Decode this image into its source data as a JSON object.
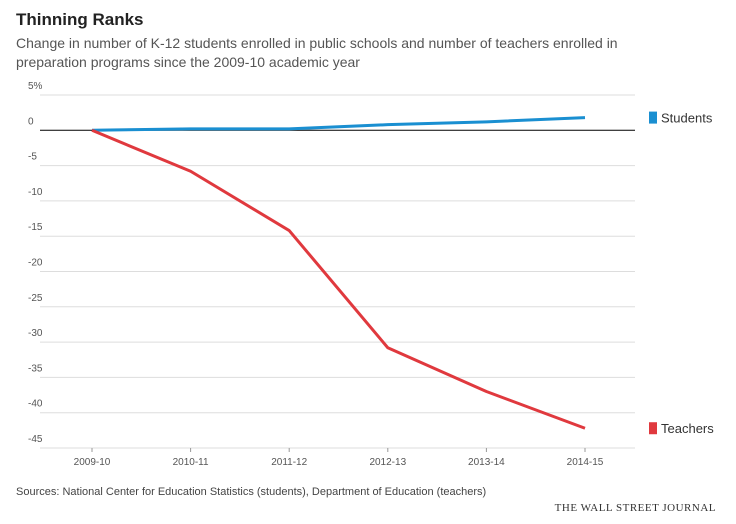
{
  "chart_data": {
    "type": "line",
    "title": "Thinning Ranks",
    "subtitle": [
      "Change in number of K-12 students enrolled in public schools and number of teachers enrolled in",
      "preparation programs since the 2009-10 academic year"
    ],
    "categories": [
      "2009-10",
      "2010-11",
      "2011-12",
      "2012-13",
      "2013-14",
      "2014-15"
    ],
    "series": [
      {
        "name": "Students",
        "color": "#1a8fd1",
        "values": [
          0,
          0.2,
          0.2,
          0.8,
          1.2,
          1.8
        ]
      },
      {
        "name": "Teachers",
        "color": "#e0393e",
        "values": [
          0,
          -5.8,
          -14.2,
          -30.8,
          -37,
          -42.2
        ]
      }
    ],
    "ylim": [
      -45,
      5
    ],
    "yticks": [
      {
        "value": 5,
        "label": "5%"
      },
      0,
      -5,
      -10,
      -15,
      -20,
      -25,
      -30,
      -35,
      -40,
      -45
    ],
    "grid": true,
    "source": "Sources: National Center for Education Statistics (students), Department of Education (teachers)",
    "publisher": "THE WALL STREET JOURNAL"
  }
}
